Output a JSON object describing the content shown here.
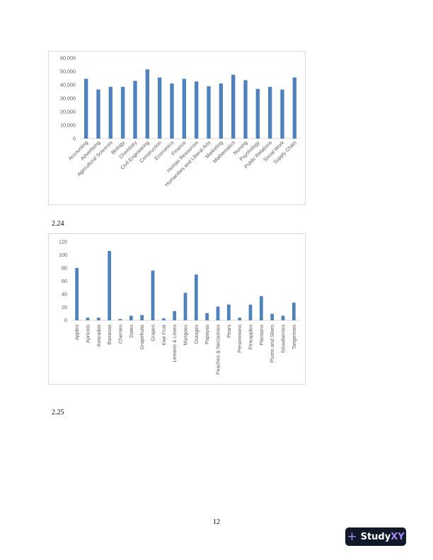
{
  "section_labels": [
    "2.24",
    "2.25"
  ],
  "page_number": "12",
  "brand": {
    "name_main": "Study",
    "name_accent": "XY",
    "icon": "plus-icon",
    "accent_color": "#a78bfa",
    "badge_color": "#111827"
  },
  "chart_data": [
    {
      "type": "bar",
      "title": "",
      "xlabel": "",
      "ylabel": "",
      "ylim": [
        0,
        60000
      ],
      "yticks": [
        0,
        10000,
        20000,
        30000,
        40000,
        50000,
        60000
      ],
      "ytick_labels": [
        "0",
        "10,000",
        "20,000",
        "30,000",
        "40,000",
        "50,000",
        "60,000"
      ],
      "grid": false,
      "bar_color": "#4f81bd",
      "categories": [
        "Accounting",
        "Advertising",
        "Agricultural Sciences",
        "Biology",
        "Chemistry",
        "Civil Engineering",
        "Construction",
        "Economics",
        "Finance",
        "Human Resources",
        "Humanities and Liberal Arts",
        "Marketing",
        "Mathematics",
        "Nursing",
        "Psychology",
        "Public Relations",
        "Social Work",
        "Supply Chain"
      ],
      "values": [
        44500,
        36500,
        38500,
        38500,
        43000,
        51500,
        45500,
        41000,
        44500,
        42500,
        39000,
        41000,
        47500,
        43500,
        37000,
        38500,
        36500,
        45500
      ]
    },
    {
      "type": "bar",
      "title": "",
      "xlabel": "",
      "ylabel": "",
      "ylim": [
        0,
        120
      ],
      "yticks": [
        0,
        20,
        40,
        60,
        80,
        100,
        120
      ],
      "ytick_labels": [
        "0",
        "20",
        "40",
        "60",
        "80",
        "100",
        "120"
      ],
      "grid": false,
      "bar_color": "#4f81bd",
      "categories": [
        "Apples",
        "Apricots",
        "Avocados",
        "Bananas",
        "Cherries",
        "Dates",
        "Grapefruits",
        "Grapes",
        "Kiwi Fruit",
        "Lemons & Limes",
        "Mangoes",
        "Oranges",
        "Papayas",
        "Peaches & Nectarines",
        "Pears",
        "Persimmons",
        "Pineapples",
        "Plantains",
        "Plums and Sloes",
        "Strawberries",
        "Tangerines"
      ],
      "values": [
        80,
        4,
        4,
        106,
        2,
        7,
        8,
        76,
        3,
        14,
        42,
        70,
        11,
        21,
        24,
        4,
        24,
        37,
        10,
        7,
        27
      ]
    }
  ]
}
